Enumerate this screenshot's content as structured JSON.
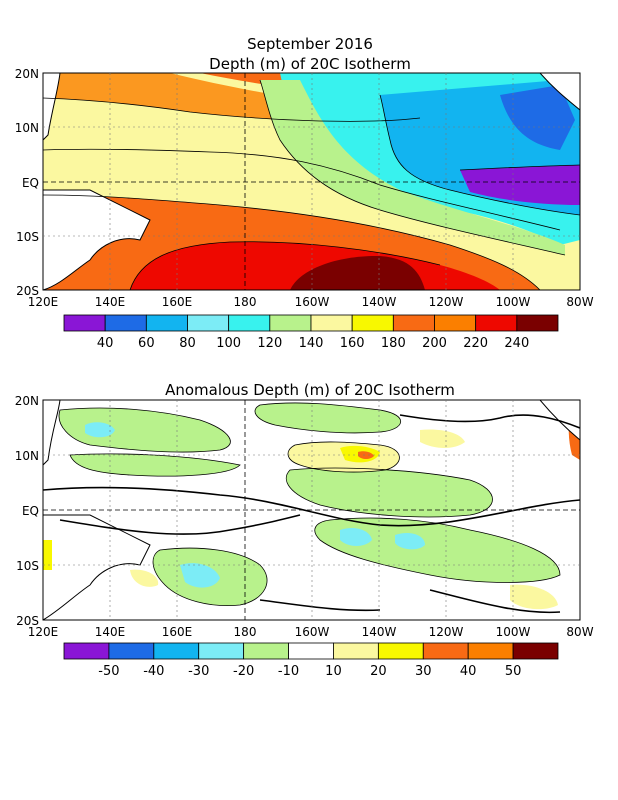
{
  "figure": {
    "title_line1": "September 2016",
    "title_line2": "Depth (m) of 20C Isotherm",
    "title_panel2": "Anomalous Depth (m) of 20C Isotherm"
  },
  "axes": {
    "y_labels": [
      "20N",
      "10N",
      "EQ",
      "10S",
      "20S"
    ],
    "x_labels": [
      "120E",
      "140E",
      "160E",
      "180",
      "160W",
      "140W",
      "120W",
      "100W",
      "80W"
    ]
  },
  "colorbar_depth": {
    "labels": [
      "40",
      "60",
      "80",
      "100",
      "120",
      "140",
      "160",
      "180",
      "200",
      "220",
      "240"
    ],
    "colors": [
      "#8a16d6",
      "#1e6be6",
      "#12b4f0",
      "#7cecf6",
      "#38f2ee",
      "#b8f28c",
      "#fbf8a0",
      "#f8f800",
      "#f86a14",
      "#fb7f00",
      "#ee0800",
      "#7a0000"
    ]
  },
  "colorbar_anomaly": {
    "labels": [
      "-50",
      "-40",
      "-30",
      "-20",
      "-10",
      "10",
      "20",
      "30",
      "40",
      "50"
    ],
    "colors": [
      "#8a16d6",
      "#1e6be6",
      "#12b4f0",
      "#7cecf6",
      "#b8f28c",
      "#ffffff",
      "#fbf8a0",
      "#f8f800",
      "#f86a14",
      "#fb7f00",
      "#7a0000"
    ]
  },
  "legend": {
    "depth_bands": [
      {
        "color": "#f86a14",
        "meaning": "200"
      },
      {
        "color": "#ee0800",
        "meaning": "240"
      },
      {
        "color": "#7a0000",
        "meaning": "240"
      }
    ]
  }
}
